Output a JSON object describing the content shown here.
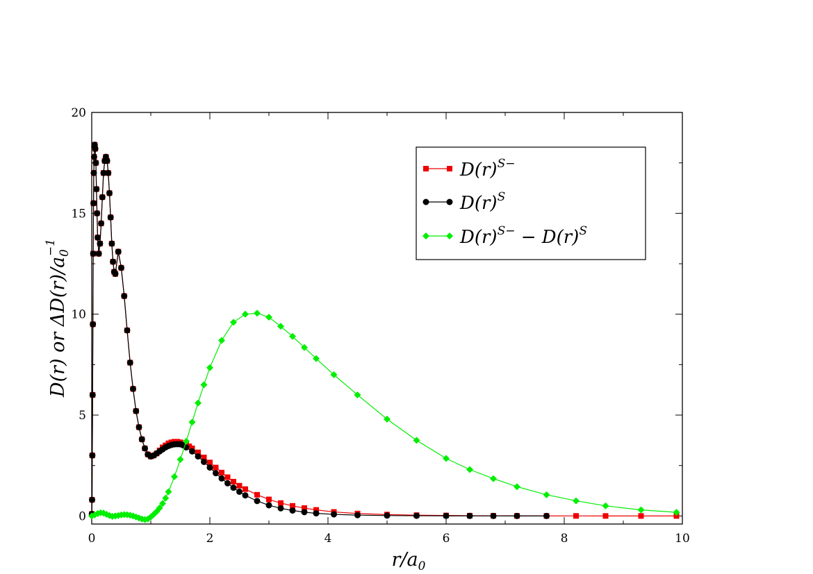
{
  "chart_data": {
    "type": "line",
    "xlabel": "r/a0",
    "xlabel_parts": {
      "main": "r/a",
      "sub": "0"
    },
    "ylabel": "D(r) or ΔD(r)/a0^-1",
    "ylabel_parts": {
      "pre": "D(r) or ΔD(r)/a",
      "sub": "0",
      "sup": "−1"
    },
    "xlim": [
      0,
      10
    ],
    "ylim": [
      -0.4,
      20
    ],
    "xticks": [
      0,
      2,
      4,
      6,
      8,
      10
    ],
    "xtick_labels": [
      "0",
      "2",
      "4",
      "6",
      "8",
      "10"
    ],
    "yticks": [
      0,
      5,
      10,
      15,
      20
    ],
    "ytick_labels": [
      "0",
      "5",
      "10",
      "15",
      "20"
    ],
    "grid": false,
    "legend_position": "top-right",
    "series": [
      {
        "name": "D(r)^S−",
        "legend": {
          "base": "D(r)",
          "sup": "S−"
        },
        "color": "#ee0000",
        "marker": "square",
        "x": [
          0.002,
          0.006,
          0.01,
          0.015,
          0.02,
          0.025,
          0.03,
          0.035,
          0.04,
          0.045,
          0.05,
          0.06,
          0.07,
          0.08,
          0.09,
          0.1,
          0.12,
          0.14,
          0.16,
          0.18,
          0.2,
          0.22,
          0.24,
          0.26,
          0.28,
          0.3,
          0.32,
          0.34,
          0.36,
          0.38,
          0.4,
          0.45,
          0.5,
          0.55,
          0.6,
          0.65,
          0.7,
          0.75,
          0.8,
          0.85,
          0.9,
          0.95,
          1.0,
          1.05,
          1.1,
          1.15,
          1.2,
          1.25,
          1.3,
          1.35,
          1.4,
          1.45,
          1.5,
          1.55,
          1.6,
          1.65,
          1.7,
          1.8,
          1.9,
          2.0,
          2.1,
          2.2,
          2.3,
          2.4,
          2.5,
          2.6,
          2.8,
          3.0,
          3.2,
          3.4,
          3.6,
          3.8,
          4.1,
          4.5,
          5.0,
          5.5,
          6.0,
          6.4,
          6.8,
          7.2,
          7.7,
          8.2,
          8.7,
          9.3,
          9.9
        ],
        "y": [
          0.1,
          0.8,
          3.0,
          6.0,
          9.5,
          13.0,
          15.5,
          17.0,
          17.8,
          18.3,
          18.4,
          18.2,
          17.5,
          16.2,
          15.0,
          13.8,
          13.0,
          13.5,
          14.5,
          15.8,
          17.0,
          17.6,
          17.8,
          17.6,
          17.0,
          16.0,
          14.8,
          13.5,
          12.6,
          12.1,
          12.0,
          13.1,
          12.3,
          10.9,
          9.2,
          7.6,
          6.3,
          5.2,
          4.4,
          3.8,
          3.35,
          3.05,
          2.95,
          3.0,
          3.1,
          3.25,
          3.4,
          3.5,
          3.6,
          3.65,
          3.68,
          3.68,
          3.65,
          3.6,
          3.55,
          3.45,
          3.35,
          3.15,
          2.9,
          2.65,
          2.4,
          2.15,
          1.92,
          1.7,
          1.5,
          1.33,
          1.05,
          0.82,
          0.64,
          0.5,
          0.39,
          0.3,
          0.2,
          0.12,
          0.07,
          0.04,
          0.025,
          0.015,
          0.01,
          0.006,
          0.004,
          0.002,
          0.001,
          0.0,
          0.0
        ]
      },
      {
        "name": "D(r)^S",
        "legend": {
          "base": "D(r)",
          "sup": "S"
        },
        "color": "#000000",
        "marker": "circle",
        "x": [
          0.002,
          0.006,
          0.01,
          0.015,
          0.02,
          0.025,
          0.03,
          0.035,
          0.04,
          0.045,
          0.05,
          0.06,
          0.07,
          0.08,
          0.09,
          0.1,
          0.12,
          0.14,
          0.16,
          0.18,
          0.2,
          0.22,
          0.24,
          0.26,
          0.28,
          0.3,
          0.32,
          0.34,
          0.36,
          0.38,
          0.4,
          0.45,
          0.5,
          0.55,
          0.6,
          0.65,
          0.7,
          0.75,
          0.8,
          0.85,
          0.9,
          0.95,
          1.0,
          1.05,
          1.1,
          1.15,
          1.2,
          1.25,
          1.3,
          1.35,
          1.4,
          1.45,
          1.5,
          1.55,
          1.6,
          1.7,
          1.8,
          1.9,
          2.0,
          2.1,
          2.2,
          2.3,
          2.4,
          2.5,
          2.6,
          2.8,
          3.0,
          3.2,
          3.4,
          3.6,
          3.8,
          4.1,
          4.5,
          5.0,
          5.5,
          6.0,
          6.4,
          6.8,
          7.2,
          7.7
        ],
        "y": [
          0.1,
          0.8,
          3.0,
          6.0,
          9.5,
          13.0,
          15.5,
          17.0,
          17.8,
          18.3,
          18.4,
          18.2,
          17.5,
          16.2,
          15.0,
          13.8,
          13.0,
          13.5,
          14.5,
          15.8,
          17.0,
          17.6,
          17.8,
          17.6,
          17.0,
          16.0,
          14.8,
          13.5,
          12.6,
          12.1,
          12.0,
          13.1,
          12.3,
          10.9,
          9.2,
          7.6,
          6.3,
          5.2,
          4.4,
          3.8,
          3.35,
          3.05,
          2.95,
          3.0,
          3.1,
          3.2,
          3.3,
          3.4,
          3.47,
          3.52,
          3.55,
          3.56,
          3.55,
          3.5,
          3.4,
          3.2,
          2.95,
          2.68,
          2.4,
          2.12,
          1.86,
          1.62,
          1.4,
          1.2,
          1.02,
          0.74,
          0.53,
          0.38,
          0.27,
          0.19,
          0.13,
          0.08,
          0.04,
          0.02,
          0.01,
          0.005,
          0.003,
          0.002,
          0.001,
          0.0
        ]
      },
      {
        "name": "D(r)^S− − D(r)^S",
        "legend": {
          "base1": "D(r)",
          "sup1": "S−",
          "mid": " − D(r)",
          "sup2": "S"
        },
        "color": "#00ee00",
        "marker": "diamond",
        "x": [
          0.0,
          0.05,
          0.1,
          0.15,
          0.2,
          0.25,
          0.3,
          0.35,
          0.4,
          0.45,
          0.5,
          0.55,
          0.6,
          0.65,
          0.7,
          0.75,
          0.8,
          0.85,
          0.9,
          0.95,
          1.0,
          1.05,
          1.1,
          1.15,
          1.2,
          1.25,
          1.3,
          1.4,
          1.5,
          1.6,
          1.7,
          1.8,
          1.9,
          2.0,
          2.2,
          2.4,
          2.6,
          2.8,
          3.0,
          3.2,
          3.4,
          3.6,
          3.8,
          4.1,
          4.5,
          5.0,
          5.5,
          6.0,
          6.4,
          6.8,
          7.2,
          7.7,
          8.2,
          8.7,
          9.3,
          9.9
        ],
        "y": [
          0.0,
          0.05,
          0.12,
          0.16,
          0.14,
          0.08,
          0.02,
          -0.02,
          0.0,
          0.02,
          0.05,
          0.07,
          0.06,
          0.04,
          0.0,
          -0.05,
          -0.1,
          -0.15,
          -0.18,
          -0.15,
          -0.05,
          0.08,
          0.22,
          0.4,
          0.62,
          0.88,
          1.2,
          1.95,
          2.8,
          3.7,
          4.65,
          5.6,
          6.5,
          7.35,
          8.7,
          9.6,
          10.0,
          10.05,
          9.85,
          9.4,
          8.9,
          8.35,
          7.8,
          7.0,
          6.0,
          4.8,
          3.75,
          2.85,
          2.3,
          1.85,
          1.45,
          1.05,
          0.75,
          0.5,
          0.3,
          0.18
        ]
      }
    ]
  }
}
